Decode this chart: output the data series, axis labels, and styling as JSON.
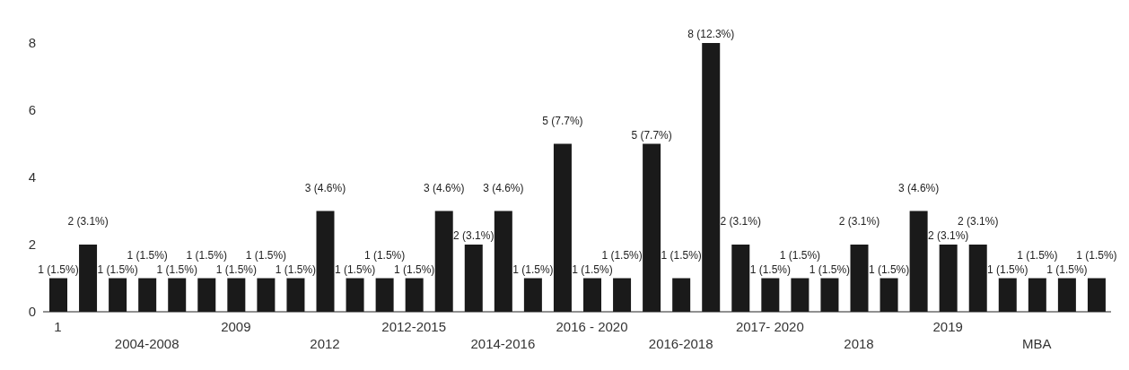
{
  "chart_data": {
    "type": "bar",
    "categories": [
      "1",
      null,
      null,
      "2004-2008",
      null,
      null,
      "2009",
      null,
      null,
      "2012",
      null,
      null,
      "2012-2015",
      null,
      null,
      "2014-2016",
      null,
      null,
      "2016 - 2020",
      null,
      null,
      "2016-2018",
      null,
      null,
      "2017- 2020",
      null,
      null,
      "2018",
      null,
      null,
      "2019",
      null,
      null,
      "MBA",
      null,
      null
    ],
    "values": [
      1,
      2,
      1,
      1,
      1,
      1,
      1,
      1,
      1,
      3,
      1,
      1,
      1,
      3,
      2,
      3,
      1,
      5,
      1,
      1,
      5,
      1,
      8,
      2,
      1,
      1,
      1,
      2,
      1,
      3,
      2,
      2,
      1,
      1,
      1,
      1
    ],
    "value_labels": [
      "1 (1.5%)",
      "2 (3.1%)",
      "1 (1.5%)",
      "1 (1.5%)",
      "1 (1.5%)",
      "1 (1.5%)",
      "1 (1.5%)",
      "1 (1.5%)",
      "1 (1.5%)",
      "3 (4.6%)",
      "1 (1.5%)",
      "1 (1.5%)",
      "1 (1.5%)",
      "3 (4.6%)",
      "2 (3.1%)",
      "3 (4.6%)",
      "1 (1.5%)",
      "5 (7.7%)",
      "1 (1.5%)",
      "1 (1.5%)",
      "5 (7.7%)",
      "1 (1.5%)",
      "8 (12.3%)",
      "2 (3.1%)",
      "1 (1.5%)",
      "1 (1.5%)",
      "1 (1.5%)",
      "2 (3.1%)",
      "1 (1.5%)",
      "3 (4.6%)",
      "2 (3.1%)",
      "2 (3.1%)",
      "1 (1.5%)",
      "1 (1.5%)",
      "1 (1.5%)",
      "1 (1.5%)"
    ],
    "color": "#1a1a1a",
    "ylim": [
      0,
      8
    ],
    "yticks": [
      0,
      2,
      4,
      6,
      8
    ],
    "grid": false,
    "legend": false
  }
}
